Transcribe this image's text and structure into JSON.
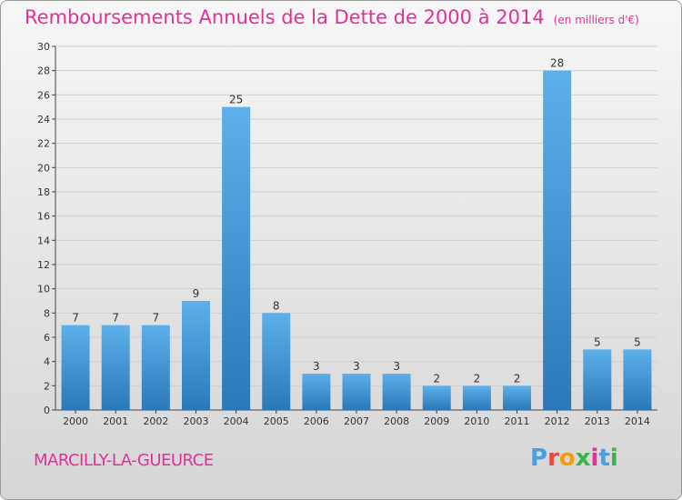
{
  "title": "Remboursements Annuels de la Dette de 2000 à 2014",
  "unit": "(en milliers d'€)",
  "town": "MARCILLY-LA-GUEURCE",
  "logo": {
    "letters": [
      "P",
      "r",
      "o",
      "x",
      "i",
      "t",
      "i"
    ],
    "colors": [
      "#4a9fe0",
      "#e64b3c",
      "#f39c12",
      "#3cb44b",
      "#e0309a",
      "#4a9fe0",
      "#3cb44b"
    ]
  },
  "colors": {
    "title": "#e0309a",
    "bar_light": "#5db0ea",
    "bar_dark": "#2a78b8",
    "grid": "#cfcfcf"
  },
  "chart_data": {
    "type": "bar",
    "categories": [
      "2000",
      "2001",
      "2002",
      "2003",
      "2004",
      "2005",
      "2006",
      "2007",
      "2008",
      "2009",
      "2010",
      "2011",
      "2012",
      "2013",
      "2014"
    ],
    "values": [
      7,
      7,
      7,
      9,
      25,
      8,
      3,
      3,
      3,
      2,
      2,
      2,
      28,
      5,
      5
    ],
    "ylim": [
      0,
      30
    ],
    "yticks": [
      0,
      2,
      4,
      6,
      8,
      10,
      12,
      14,
      16,
      18,
      20,
      22,
      24,
      26,
      28,
      30
    ],
    "grid": true
  }
}
